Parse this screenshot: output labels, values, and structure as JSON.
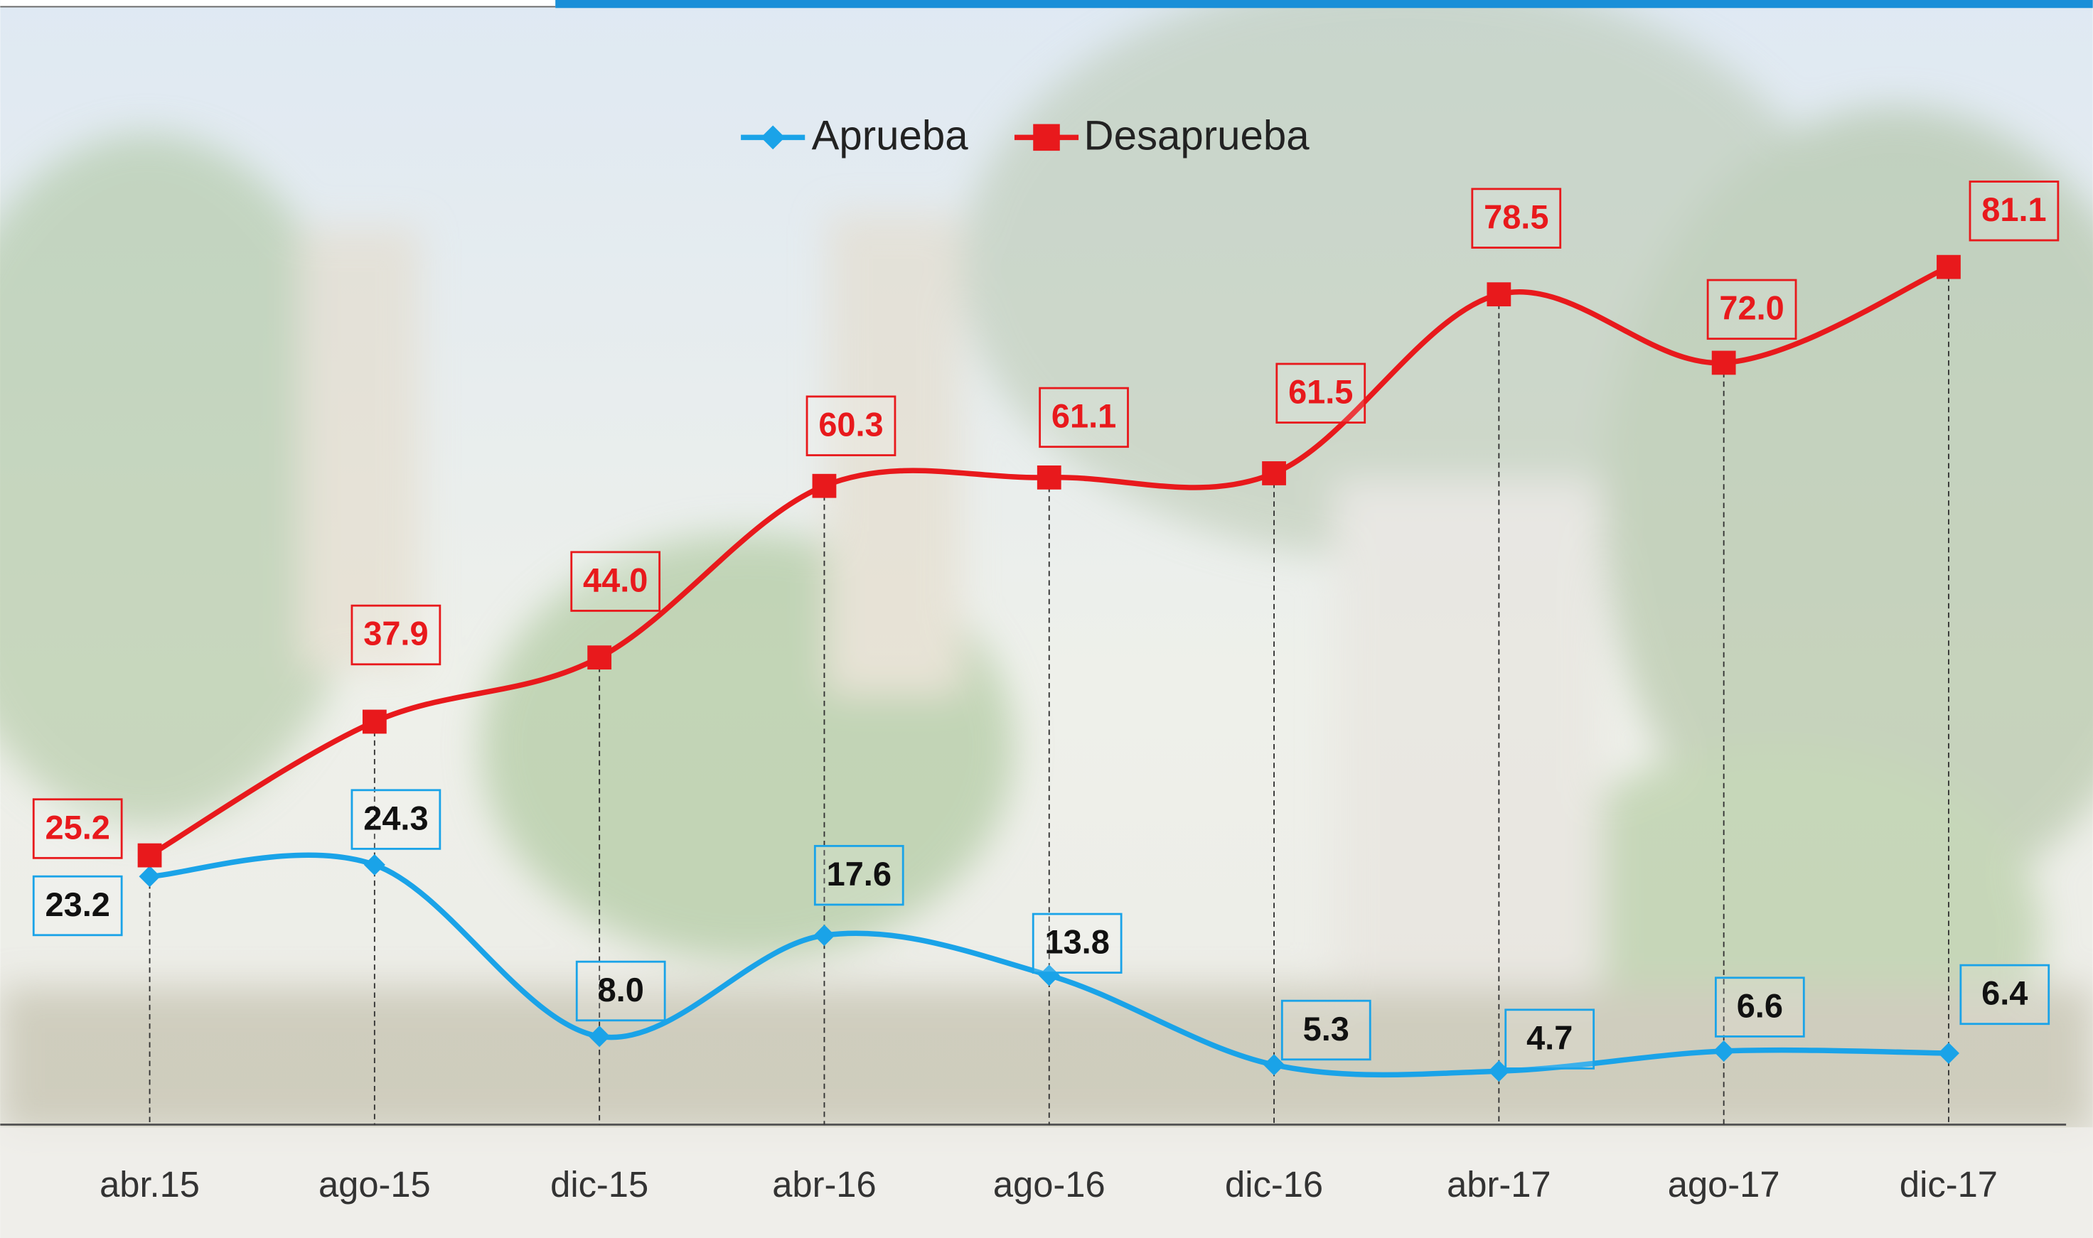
{
  "chart_data": {
    "type": "line",
    "categories": [
      "abr.15",
      "ago-15",
      "dic-15",
      "abr-16",
      "ago-16",
      "dic-16",
      "abr-17",
      "ago-17",
      "dic-17"
    ],
    "series": [
      {
        "name": "Aprueba",
        "color": "#1aa3e8",
        "values": [
          23.2,
          24.3,
          8.0,
          17.6,
          13.8,
          5.3,
          4.7,
          6.6,
          6.4
        ],
        "value_labels": [
          "23.2",
          "24.3",
          "8.0",
          "17.6",
          "13.8",
          "5.3",
          "4.7",
          "6.6",
          "6.4"
        ]
      },
      {
        "name": "Desaprueba",
        "color": "#e8191c",
        "values": [
          25.2,
          37.9,
          44.0,
          60.3,
          61.1,
          61.5,
          78.5,
          72.0,
          81.1
        ],
        "value_labels": [
          "25.2",
          "37.9",
          "44.0",
          "60.3",
          "61.1",
          "61.5",
          "78.5",
          "72.0",
          "81.1"
        ]
      }
    ],
    "ylim": [
      0,
      100
    ],
    "legend": "top"
  }
}
